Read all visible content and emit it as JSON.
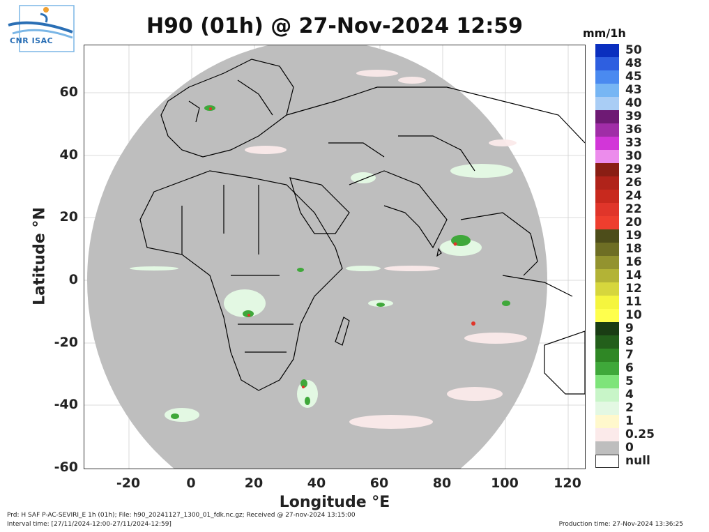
{
  "title": "H90 (01h) @ 27-Nov-2024 12:59",
  "logo_text": "CNR ISAC",
  "units": "mm/1h",
  "axes": {
    "xlabel": "Longitude °E",
    "ylabel": "Latitude °N",
    "xticks": [
      "-20",
      "0",
      "20",
      "40",
      "60",
      "80",
      "100",
      "120"
    ],
    "yticks": [
      "60",
      "40",
      "20",
      "0",
      "-20",
      "-40",
      "-60"
    ]
  },
  "colorbar": [
    {
      "label": "50",
      "color": "#0a2fbf"
    },
    {
      "label": "48",
      "color": "#2e5fe0"
    },
    {
      "label": "45",
      "color": "#4a8af0"
    },
    {
      "label": "43",
      "color": "#77b6f4"
    },
    {
      "label": "40",
      "color": "#a9cdf5"
    },
    {
      "label": "39",
      "color": "#6e1a74"
    },
    {
      "label": "36",
      "color": "#a02da7"
    },
    {
      "label": "33",
      "color": "#d236d8"
    },
    {
      "label": "30",
      "color": "#ec8cec"
    },
    {
      "label": "29",
      "color": "#8a1e14"
    },
    {
      "label": "26",
      "color": "#b0231a"
    },
    {
      "label": "24",
      "color": "#c8291e"
    },
    {
      "label": "22",
      "color": "#e0352a"
    },
    {
      "label": "20",
      "color": "#ee3e2e"
    },
    {
      "label": "19",
      "color": "#4d4d1a"
    },
    {
      "label": "18",
      "color": "#6e6e24"
    },
    {
      "label": "16",
      "color": "#93932f"
    },
    {
      "label": "14",
      "color": "#b3b336"
    },
    {
      "label": "12",
      "color": "#d6d63d"
    },
    {
      "label": "11",
      "color": "#f5f53e"
    },
    {
      "label": "10",
      "color": "#ffff4d"
    },
    {
      "label": "9",
      "color": "#1a3d14"
    },
    {
      "label": "8",
      "color": "#235f1b"
    },
    {
      "label": "7",
      "color": "#2f8725"
    },
    {
      "label": "6",
      "color": "#3fa83a"
    },
    {
      "label": "5",
      "color": "#7ee47a"
    },
    {
      "label": "4",
      "color": "#c8f5c8"
    },
    {
      "label": "2",
      "color": "#e3f8e3"
    },
    {
      "label": "1",
      "color": "#fff8cc"
    },
    {
      "label": "0.25",
      "color": "#fbeaea"
    },
    {
      "label": "0",
      "color": "#bebebe"
    },
    {
      "label": "null",
      "color": "#ffffff"
    }
  ],
  "footer": {
    "product": "Prd: H SAF P-AC-SEVIRI_E 1h (01h); File: h90_20241127_1300_01_fdk.nc.gz; Received @ 27-nov-2024 13:15:00",
    "interval": "Interval time: [27/11/2024-12:00-27/11/2024-12:59]",
    "production": "Production time: 27-Nov-2024 13:36:25"
  },
  "colors": {
    "disk": "#bebebe",
    "border": "#000000",
    "grid": "#cfcfcf"
  }
}
